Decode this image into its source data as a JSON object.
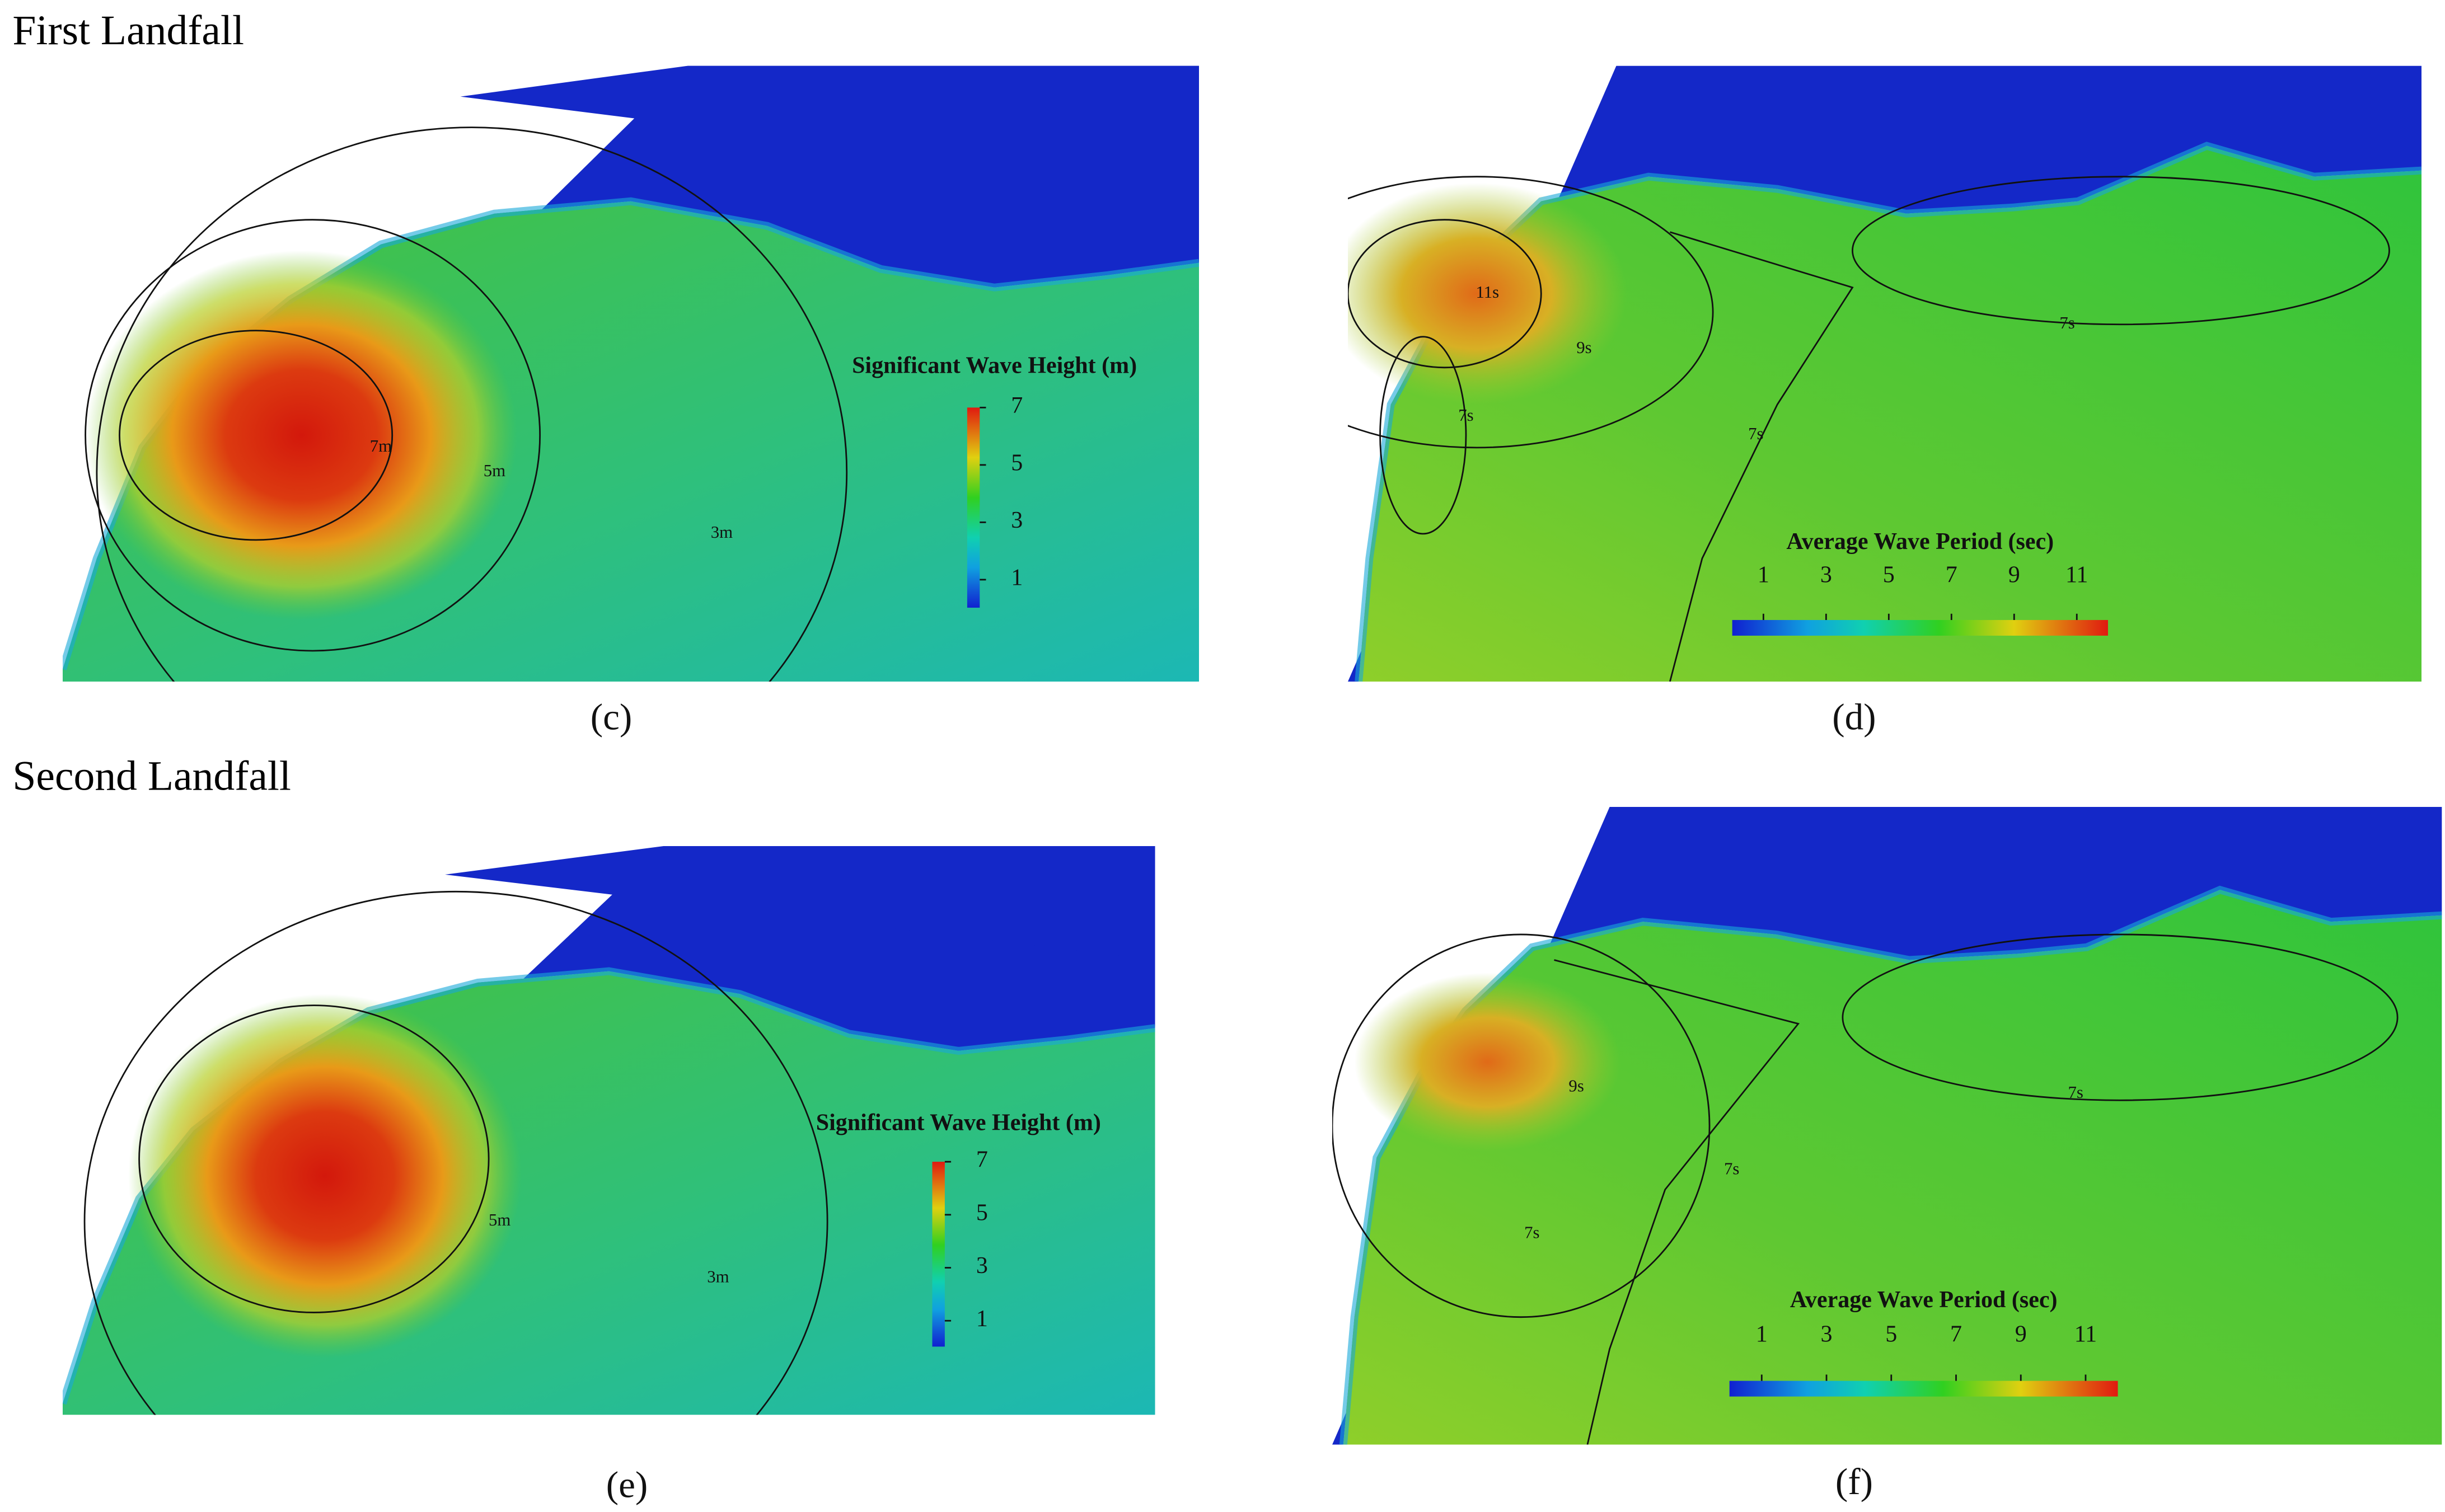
{
  "sections": [
    {
      "title": "First Landfall",
      "panels": [
        {
          "label": "(c)",
          "colorbar": {
            "title": "Significant Wave Height (m)",
            "ticks": [
              7,
              5,
              3,
              1
            ]
          },
          "contour_labels": [
            "7m",
            "5m",
            "3m"
          ]
        },
        {
          "label": "(d)",
          "colorbar": {
            "title": "Average Wave Period (sec)",
            "ticks": [
              1,
              3,
              5,
              7,
              9,
              11
            ]
          },
          "contour_labels": [
            "11s",
            "9s",
            "7s",
            "7s",
            "7s"
          ]
        }
      ]
    },
    {
      "title": "Second Landfall",
      "panels": [
        {
          "label": "(e)",
          "colorbar": {
            "title": "Significant Wave Height (m)",
            "ticks": [
              7,
              5,
              3,
              1
            ]
          },
          "contour_labels": [
            "5m",
            "3m"
          ]
        },
        {
          "label": "(f)",
          "colorbar": {
            "title": "Average Wave Period (sec)",
            "ticks": [
              1,
              3,
              5,
              7,
              9,
              11
            ]
          },
          "contour_labels": [
            "9s",
            "7s",
            "7s",
            "7s"
          ]
        }
      ]
    }
  ]
}
